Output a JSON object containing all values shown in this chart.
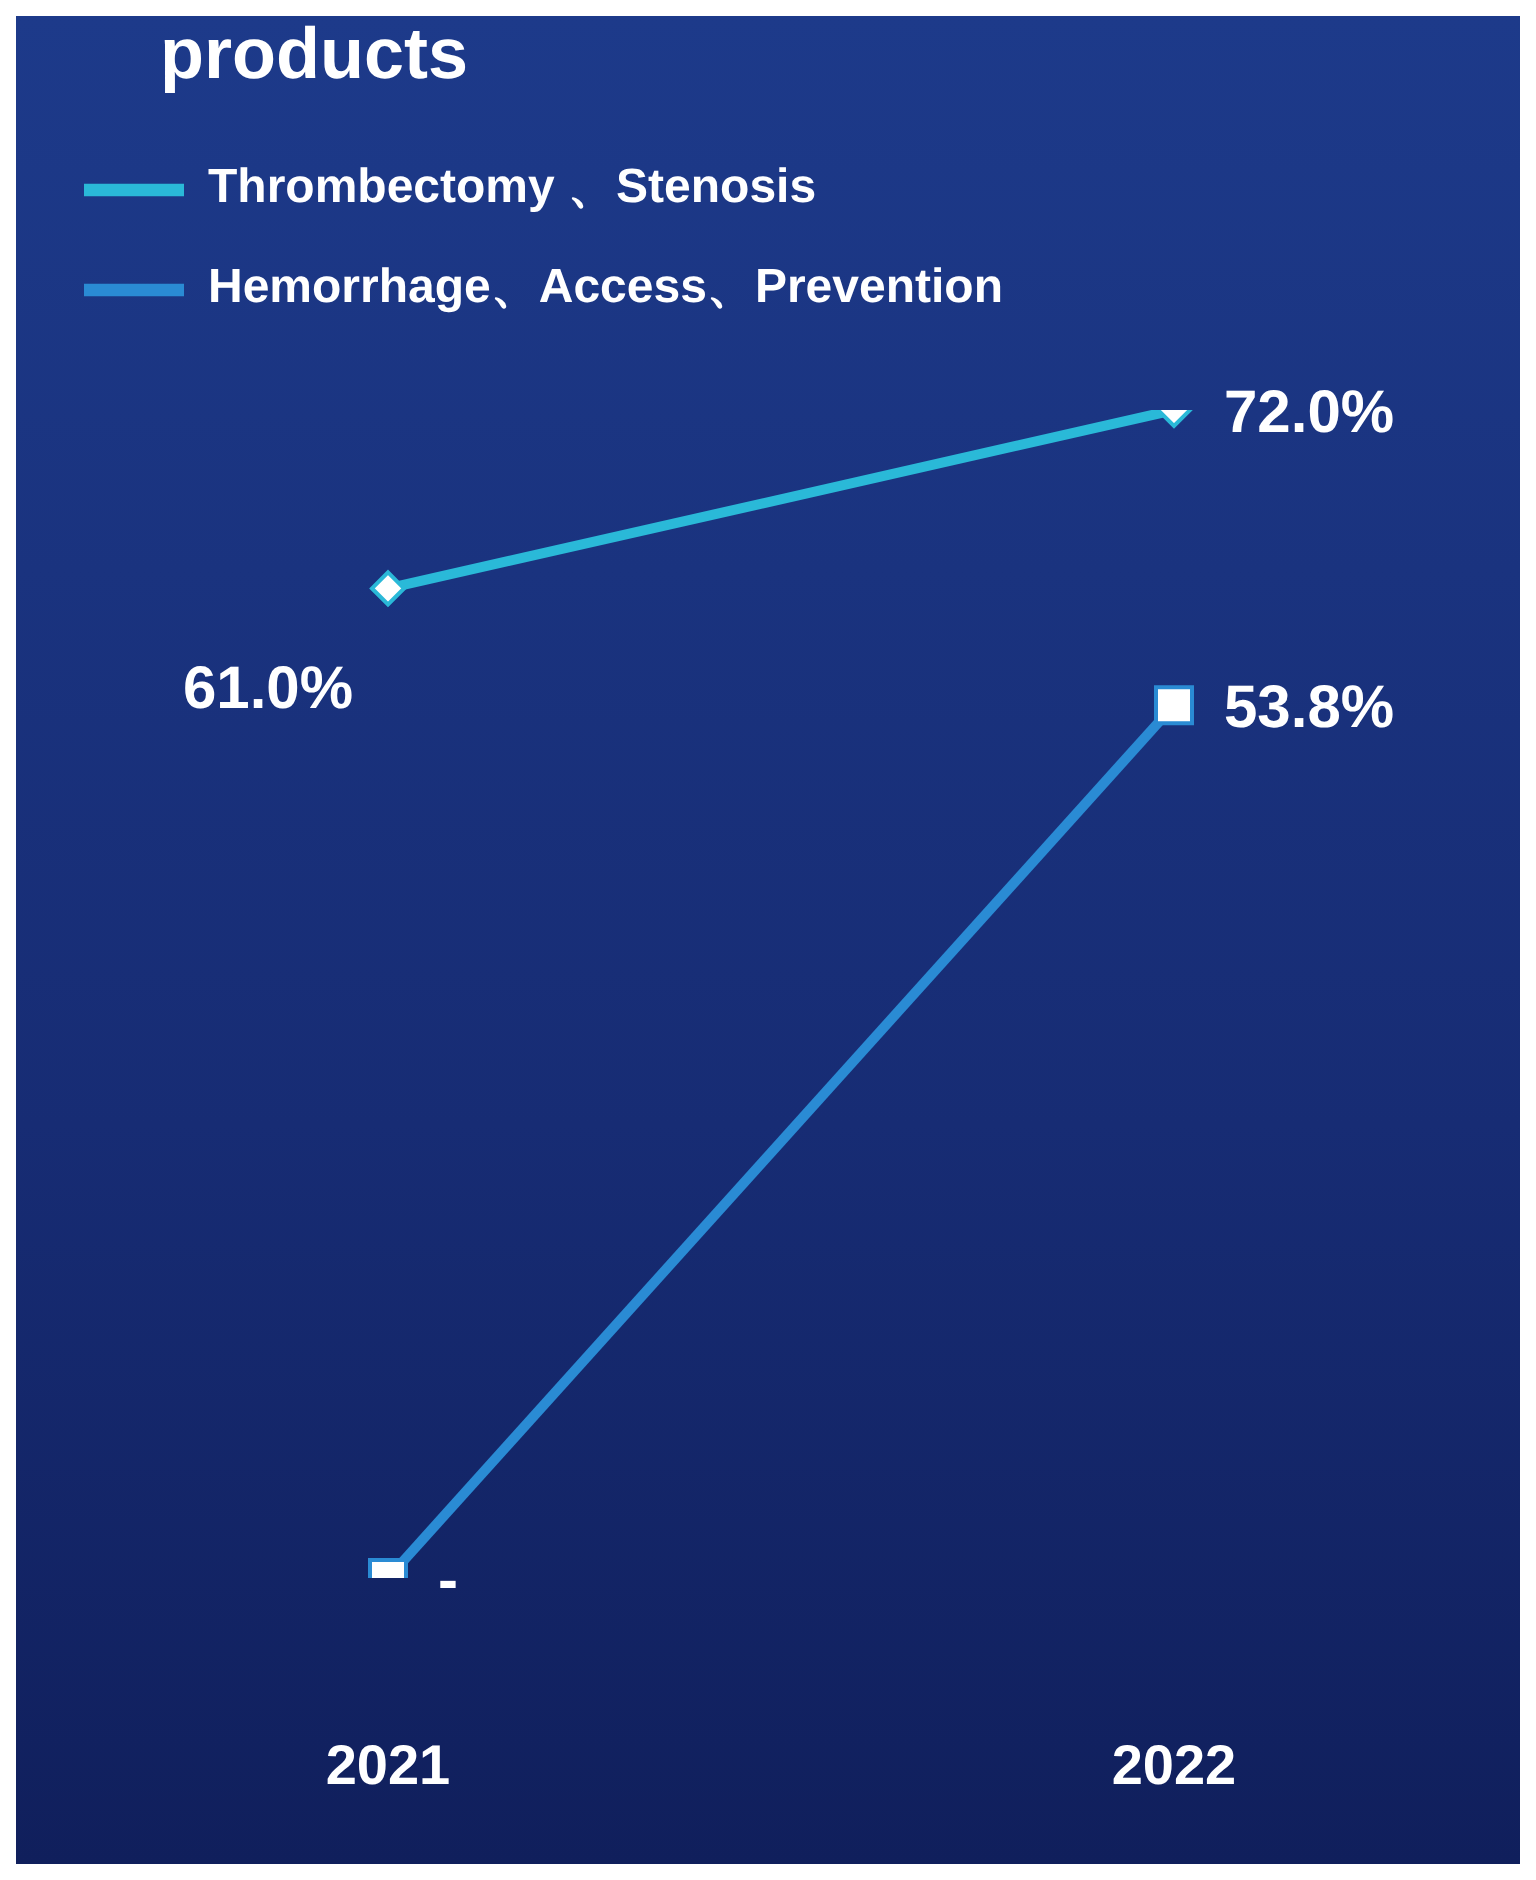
{
  "chart_data": {
    "type": "line",
    "title": "products",
    "categories": [
      "2021",
      "2022"
    ],
    "tick_labels": "x",
    "grid": false,
    "legend": "top left",
    "data_labels": true,
    "series": [
      {
        "name": "Thrombectomy 、Stenosis",
        "color": "#2ab9d8",
        "values": [
          61.0,
          72.0
        ],
        "value_labels": [
          "61.0%",
          "72.0%"
        ],
        "marker": "diamond"
      },
      {
        "name": "Hemorrhage、Access、Prevention",
        "color": "#2a8bd4",
        "values": [
          0,
          53.8
        ],
        "value_labels": [
          "-",
          "53.8%"
        ],
        "marker": "square"
      }
    ]
  }
}
